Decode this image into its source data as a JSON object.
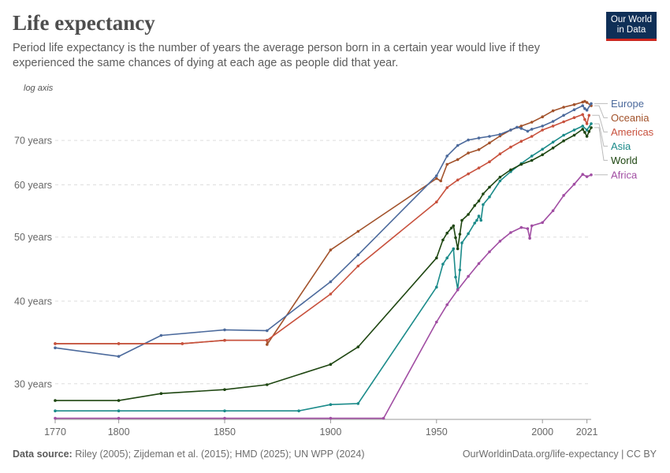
{
  "header": {
    "title": "Life expectancy",
    "subtitle": "Period life expectancy is the number of years the average person born in a certain year would live if they experienced the same chances of dying at each age as people did that year."
  },
  "logo": {
    "line1": "Our World",
    "line2": "in Data"
  },
  "footer": {
    "source_label": "Data source:",
    "source_text": "Riley (2005); Zijdeman et al. (2015); HMD (2025); UN WPP (2024)",
    "link": "OurWorldinData.org/life-expectancy | CC BY"
  },
  "chart_data": {
    "type": "line",
    "y_scale": "log",
    "y_scale_note": "log axis",
    "ylim": [
      26.5,
      81
    ],
    "xlim": [
      1770,
      2023
    ],
    "y_ticks": [
      30,
      40,
      50,
      60,
      70
    ],
    "y_tick_labels": [
      "30 years",
      "40 years",
      "50 years",
      "60 years",
      "70 years"
    ],
    "x_ticks": [
      1770,
      1800,
      1850,
      1900,
      1950,
      2000,
      2021
    ],
    "grid": "horizontal dashed",
    "legend": "right, labels at line ends",
    "series": [
      {
        "name": "Oceania",
        "color": "#a2522b",
        "points": [
          [
            1770,
            34.5
          ],
          [
            1800,
            34.5
          ],
          [
            1830,
            34.5
          ],
          [
            1850,
            34.9
          ],
          [
            1870,
            34.9
          ],
          [
            1870,
            34.4
          ],
          [
            1900,
            47.8
          ],
          [
            1913,
            51.0
          ],
          [
            1950,
            61.3
          ],
          [
            1952,
            60.8
          ],
          [
            1955,
            64.4
          ],
          [
            1960,
            65.5
          ],
          [
            1965,
            67.0
          ],
          [
            1970,
            67.8
          ],
          [
            1975,
            69.4
          ],
          [
            1980,
            71.1
          ],
          [
            1985,
            72.6
          ],
          [
            1990,
            73.6
          ],
          [
            1995,
            74.6
          ],
          [
            2000,
            76.0
          ],
          [
            2005,
            77.6
          ],
          [
            2010,
            78.6
          ],
          [
            2015,
            79.3
          ],
          [
            2019,
            80.0
          ],
          [
            2020,
            80.2
          ],
          [
            2021,
            79.9
          ],
          [
            2023,
            79.0
          ]
        ]
      },
      {
        "name": "Europe",
        "color": "#4c6a9c",
        "points": [
          [
            1770,
            34.0
          ],
          [
            1800,
            33.0
          ],
          [
            1820,
            35.5
          ],
          [
            1850,
            36.2
          ],
          [
            1870,
            36.1
          ],
          [
            1900,
            42.8
          ],
          [
            1913,
            47.0
          ],
          [
            1950,
            61.9
          ],
          [
            1955,
            66.3
          ],
          [
            1960,
            68.8
          ],
          [
            1965,
            70.1
          ],
          [
            1970,
            70.6
          ],
          [
            1975,
            71.0
          ],
          [
            1980,
            71.5
          ],
          [
            1985,
            72.6
          ],
          [
            1988,
            73.3
          ],
          [
            1990,
            73.0
          ],
          [
            1993,
            72.3
          ],
          [
            1995,
            72.8
          ],
          [
            2000,
            73.6
          ],
          [
            2005,
            74.8
          ],
          [
            2010,
            76.4
          ],
          [
            2015,
            77.9
          ],
          [
            2019,
            79.0
          ],
          [
            2020,
            78.2
          ],
          [
            2021,
            77.8
          ],
          [
            2023,
            79.6
          ]
        ]
      },
      {
        "name": "Americas",
        "color": "#c8513d",
        "points": [
          [
            1770,
            34.5
          ],
          [
            1800,
            34.5
          ],
          [
            1830,
            34.5
          ],
          [
            1850,
            34.9
          ],
          [
            1870,
            34.9
          ],
          [
            1900,
            41.0
          ],
          [
            1913,
            45.2
          ],
          [
            1950,
            56.5
          ],
          [
            1955,
            59.4
          ],
          [
            1960,
            61.0
          ],
          [
            1965,
            62.3
          ],
          [
            1970,
            63.6
          ],
          [
            1975,
            65.0
          ],
          [
            1980,
            66.8
          ],
          [
            1985,
            68.4
          ],
          [
            1990,
            69.8
          ],
          [
            1995,
            71.0
          ],
          [
            2000,
            72.6
          ],
          [
            2005,
            73.6
          ],
          [
            2010,
            74.7
          ],
          [
            2015,
            75.8
          ],
          [
            2019,
            76.6
          ],
          [
            2020,
            75.3
          ],
          [
            2021,
            74.2
          ],
          [
            2022,
            76.4
          ]
        ]
      },
      {
        "name": "Asia",
        "color": "#1b8b8a",
        "points": [
          [
            1770,
            27.3
          ],
          [
            1800,
            27.3
          ],
          [
            1850,
            27.3
          ],
          [
            1885,
            27.3
          ],
          [
            1900,
            27.9
          ],
          [
            1913,
            28.0
          ],
          [
            1950,
            42.0
          ],
          [
            1953,
            45.5
          ],
          [
            1955,
            46.5
          ],
          [
            1958,
            48.0
          ],
          [
            1959,
            43.5
          ],
          [
            1960,
            41.7
          ],
          [
            1961,
            44.6
          ],
          [
            1962,
            49.0
          ],
          [
            1965,
            50.6
          ],
          [
            1968,
            52.5
          ],
          [
            1969,
            53.0
          ],
          [
            1970,
            53.8
          ],
          [
            1971,
            53.0
          ],
          [
            1972,
            56.0
          ],
          [
            1975,
            57.5
          ],
          [
            1980,
            60.8
          ],
          [
            1985,
            62.8
          ],
          [
            1990,
            64.6
          ],
          [
            1995,
            66.3
          ],
          [
            2000,
            67.9
          ],
          [
            2005,
            69.6
          ],
          [
            2010,
            71.3
          ],
          [
            2015,
            72.6
          ],
          [
            2019,
            73.6
          ],
          [
            2021,
            72.6
          ],
          [
            2023,
            74.2
          ]
        ]
      },
      {
        "name": "World",
        "color": "#1e4611",
        "points": [
          [
            1770,
            28.3
          ],
          [
            1800,
            28.3
          ],
          [
            1820,
            29.0
          ],
          [
            1850,
            29.4
          ],
          [
            1870,
            29.9
          ],
          [
            1900,
            32.1
          ],
          [
            1913,
            34.1
          ],
          [
            1950,
            46.5
          ],
          [
            1953,
            49.5
          ],
          [
            1955,
            50.7
          ],
          [
            1957,
            51.6
          ],
          [
            1958,
            52.0
          ],
          [
            1959,
            49.9
          ],
          [
            1960,
            48.0
          ],
          [
            1961,
            50.5
          ],
          [
            1962,
            53.0
          ],
          [
            1965,
            54.1
          ],
          [
            1968,
            55.8
          ],
          [
            1970,
            56.7
          ],
          [
            1972,
            58.1
          ],
          [
            1975,
            59.5
          ],
          [
            1980,
            61.6
          ],
          [
            1985,
            63.2
          ],
          [
            1990,
            64.4
          ],
          [
            1995,
            65.3
          ],
          [
            2000,
            66.6
          ],
          [
            2005,
            68.2
          ],
          [
            2010,
            69.9
          ],
          [
            2015,
            71.3
          ],
          [
            2019,
            72.8
          ],
          [
            2020,
            72.0
          ],
          [
            2021,
            71.0
          ],
          [
            2022,
            72.2
          ],
          [
            2023,
            73.2
          ]
        ]
      },
      {
        "name": "Africa",
        "color": "#a14ea3",
        "points": [
          [
            1770,
            26.6
          ],
          [
            1800,
            26.6
          ],
          [
            1850,
            26.6
          ],
          [
            1900,
            26.6
          ],
          [
            1925,
            26.6
          ],
          [
            1950,
            37.2
          ],
          [
            1955,
            39.5
          ],
          [
            1960,
            41.6
          ],
          [
            1965,
            43.6
          ],
          [
            1970,
            45.6
          ],
          [
            1975,
            47.5
          ],
          [
            1980,
            49.3
          ],
          [
            1985,
            50.8
          ],
          [
            1990,
            51.7
          ],
          [
            1993,
            51.5
          ],
          [
            1994,
            49.8
          ],
          [
            1995,
            52.0
          ],
          [
            2000,
            52.6
          ],
          [
            2005,
            54.8
          ],
          [
            2010,
            57.8
          ],
          [
            2015,
            60.1
          ],
          [
            2019,
            62.2
          ],
          [
            2021,
            61.7
          ],
          [
            2023,
            62.1
          ]
        ]
      }
    ]
  }
}
